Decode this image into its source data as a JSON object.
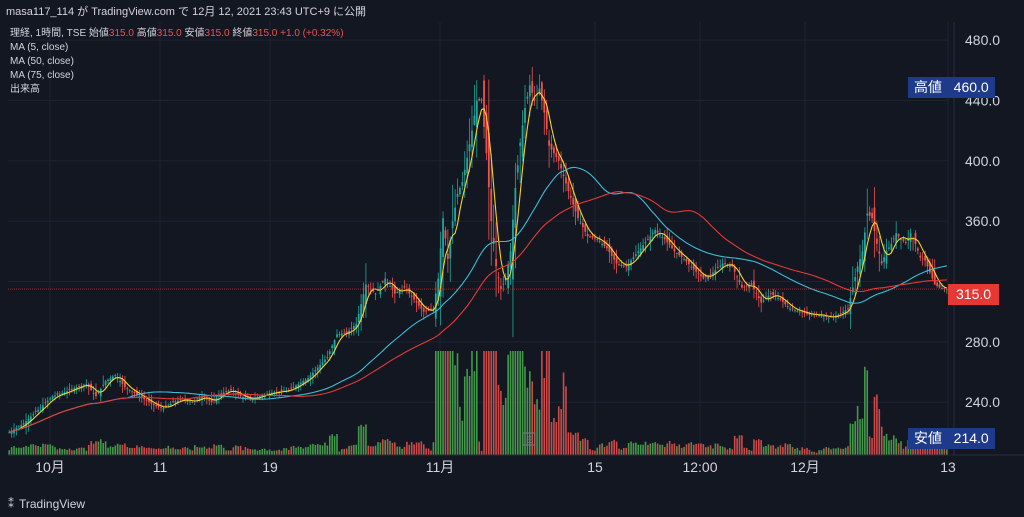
{
  "header": {
    "author": "masa117_114",
    "publish_text": "が TradingView.com で 12月 12, 2021 23:43 UTC+9 に公開"
  },
  "legend": {
    "symbol": "理経, 1時間, TSE",
    "open_label": "始値",
    "open": "315.0",
    "high_label": "高値",
    "high": "315.0",
    "low_label": "安値",
    "low": "315.0",
    "close_label": "終値",
    "close": "315.0",
    "change": "+1.0 (+0.32%)",
    "ma5": "MA (5, close)",
    "ma50": "MA (50, close)",
    "ma75": "MA (75, close)",
    "volume": "出来高"
  },
  "price_tags": {
    "high_label": "高値",
    "high_value": "460.0",
    "low_label": "安値",
    "low_value": "214.0",
    "last_value": "315.0"
  },
  "footer": {
    "brand": "TradingView"
  },
  "colors": {
    "background": "#131722",
    "up": "#26a69a",
    "down": "#ef5350",
    "ma5": "#f5d130",
    "ma50": "#3cbcd6",
    "ma75": "#e53935",
    "vol_up": "#4caf50",
    "vol_down": "#ef5350"
  },
  "chart_data": {
    "type": "candlestick",
    "symbol": "理経",
    "interval": "1時間",
    "exchange": "TSE",
    "y_axis": {
      "ticks": [
        240.0,
        280.0,
        320.0,
        360.0,
        400.0,
        440.0,
        480.0
      ],
      "tick_labels": [
        "240.0",
        "280.0",
        "",
        "360.0",
        "400.0",
        "440.0",
        "480.0"
      ],
      "range": [
        205,
        492
      ]
    },
    "x_axis": {
      "tick_labels": [
        "10月",
        "11",
        "19",
        "11月",
        "15",
        "12:00",
        "12月",
        "13"
      ]
    },
    "period_high": 460.0,
    "period_low": 214.0,
    "last_price": 315.0,
    "close_path": [
      [
        0,
        220
      ],
      [
        6,
        226
      ],
      [
        10,
        232
      ],
      [
        14,
        238
      ],
      [
        18,
        244
      ],
      [
        22,
        246
      ],
      [
        28,
        250
      ],
      [
        32,
        252
      ],
      [
        36,
        244
      ],
      [
        40,
        254
      ],
      [
        44,
        258
      ],
      [
        48,
        250
      ],
      [
        52,
        246
      ],
      [
        56,
        242
      ],
      [
        60,
        238
      ],
      [
        64,
        236
      ],
      [
        68,
        240
      ],
      [
        72,
        242
      ],
      [
        76,
        240
      ],
      [
        80,
        244
      ],
      [
        84,
        240
      ],
      [
        88,
        246
      ],
      [
        92,
        248
      ],
      [
        96,
        244
      ],
      [
        100,
        242
      ],
      [
        108,
        246
      ],
      [
        116,
        248
      ],
      [
        124,
        256
      ],
      [
        132,
        270
      ],
      [
        136,
        285
      ],
      [
        140,
        286
      ],
      [
        144,
        292
      ],
      [
        148,
        318
      ],
      [
        152,
        312
      ],
      [
        156,
        322
      ],
      [
        160,
        312
      ],
      [
        164,
        316
      ],
      [
        168,
        308
      ],
      [
        172,
        300
      ],
      [
        176,
        302
      ],
      [
        178,
        322
      ],
      [
        180,
        362
      ],
      [
        182,
        335
      ],
      [
        184,
        360
      ],
      [
        186,
        378
      ],
      [
        188,
        386
      ],
      [
        190,
        402
      ],
      [
        192,
        420
      ],
      [
        194,
        440
      ],
      [
        196,
        440
      ],
      [
        198,
        405
      ],
      [
        200,
        360
      ],
      [
        202,
        330
      ],
      [
        204,
        315
      ],
      [
        206,
        322
      ],
      [
        208,
        340
      ],
      [
        210,
        382
      ],
      [
        212,
        412
      ],
      [
        214,
        435
      ],
      [
        216,
        450
      ],
      [
        218,
        440
      ],
      [
        220,
        448
      ],
      [
        222,
        432
      ],
      [
        224,
        410
      ],
      [
        228,
        400
      ],
      [
        232,
        380
      ],
      [
        236,
        362
      ],
      [
        240,
        350
      ],
      [
        244,
        348
      ],
      [
        248,
        342
      ],
      [
        252,
        332
      ],
      [
        256,
        330
      ],
      [
        260,
        338
      ],
      [
        264,
        346
      ],
      [
        268,
        354
      ],
      [
        272,
        348
      ],
      [
        276,
        340
      ],
      [
        280,
        335
      ],
      [
        284,
        328
      ],
      [
        288,
        322
      ],
      [
        292,
        326
      ],
      [
        296,
        332
      ],
      [
        300,
        330
      ],
      [
        304,
        316
      ],
      [
        308,
        318
      ],
      [
        312,
        306
      ],
      [
        316,
        312
      ],
      [
        320,
        308
      ],
      [
        324,
        302
      ],
      [
        328,
        300
      ],
      [
        332,
        298
      ],
      [
        336,
        298
      ],
      [
        340,
        296
      ],
      [
        344,
        298
      ],
      [
        348,
        302
      ],
      [
        352,
        330
      ],
      [
        354,
        340
      ],
      [
        356,
        365
      ],
      [
        358,
        362
      ],
      [
        360,
        345
      ],
      [
        362,
        332
      ],
      [
        364,
        340
      ],
      [
        366,
        345
      ],
      [
        368,
        352
      ],
      [
        370,
        348
      ],
      [
        372,
        346
      ],
      [
        374,
        352
      ],
      [
        376,
        345
      ],
      [
        378,
        336
      ],
      [
        380,
        334
      ],
      [
        382,
        326
      ],
      [
        384,
        318
      ],
      [
        386,
        316
      ],
      [
        388,
        315
      ]
    ],
    "series": [
      {
        "name": "MA (5, close)",
        "period": 5
      },
      {
        "name": "MA (50, close)",
        "period": 50
      },
      {
        "name": "MA (75, close)",
        "period": 75
      },
      {
        "name": "出来高"
      }
    ]
  }
}
